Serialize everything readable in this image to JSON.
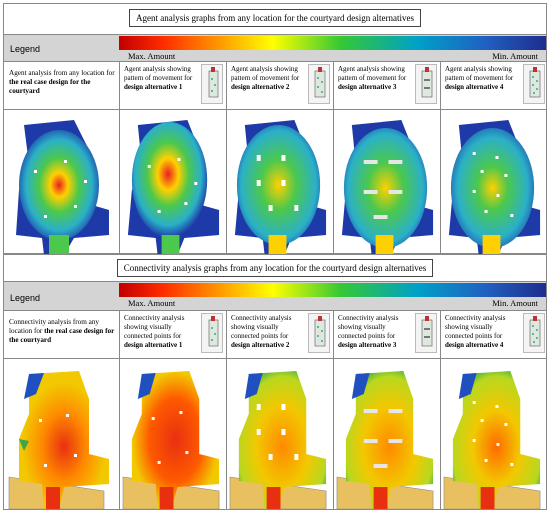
{
  "agent": {
    "title": "Agent analysis graphs from any location for the courtyard design alternatives",
    "legend": "Legend",
    "max": "Max. Amount",
    "min": "Min. Amount",
    "columns": [
      {
        "lead": "Agent analysis from any location for ",
        "strong": "the real case design for the courtyard"
      },
      {
        "lead": "Agent analysis showing pattern of movement for ",
        "strong": "design alternative 1"
      },
      {
        "lead": "Agent analysis showing pattern of movement for ",
        "strong": "design alternative 2"
      },
      {
        "lead": "Agent analysis showing pattern of movement for ",
        "strong": "design alternative 3"
      },
      {
        "lead": "Agent analysis showing pattern of movement for ",
        "strong": "design alternative 4"
      }
    ]
  },
  "connectivity": {
    "title": "Connectivity analysis graphs from any location for the courtyard design alternatives",
    "legend": "Legend",
    "max": "Max. Amount",
    "min": "Min. Amount",
    "columns": [
      {
        "lead": "Connectivity analysis from any location for ",
        "strong": "the real case design for the courtyard"
      },
      {
        "lead": "Connectivity analysis showing visually connected points for ",
        "strong": "design alternative 1"
      },
      {
        "lead": "Connectivity analysis showing visually connected points for ",
        "strong": "design alternative 2"
      },
      {
        "lead": "Connectivity analysis showing visually connected points for ",
        "strong": "design alternative 3"
      },
      {
        "lead": "Connectivity analysis showing visually connected points for ",
        "strong": "design alternative 4"
      }
    ]
  },
  "colors": {
    "agent_bg": "#1e3aa8",
    "agent_mid": "#2bb0c8",
    "agent_green": "#4cc84c",
    "agent_hot": "#ffd000",
    "agent_peak": "#e82020",
    "conn_base": "#f2c800",
    "conn_mid": "#ff8a00",
    "conn_hot": "#e83010",
    "conn_edge": "#3aa84a",
    "conn_blue": "#2050c0"
  },
  "icons": [
    "floor-plan-thumbnail",
    "heatmap-plan"
  ]
}
